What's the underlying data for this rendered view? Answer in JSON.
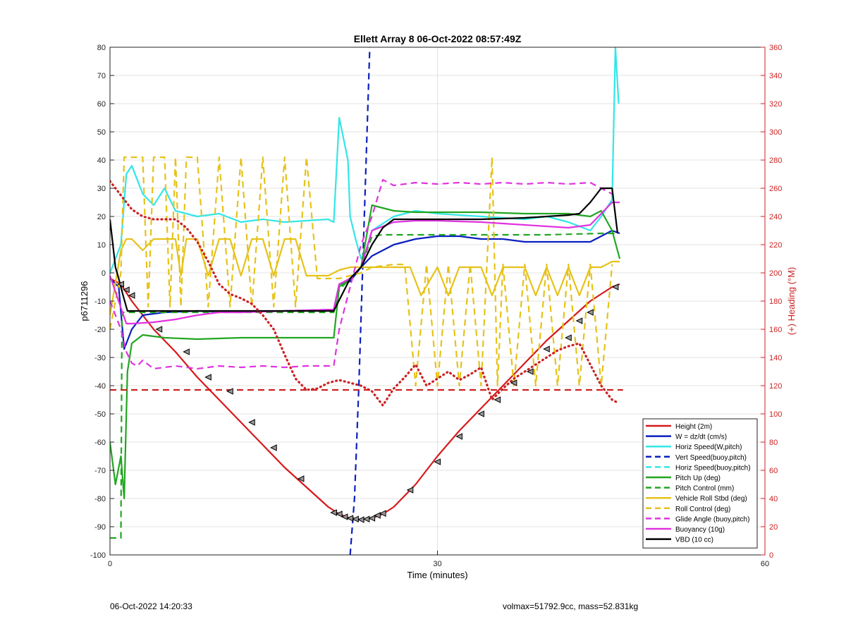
{
  "chart_data": {
    "type": "line",
    "title": "Ellett Array 8 06-Oct-2022 08:57:49Z",
    "xlabel": "Time (minutes)",
    "ylabel": "p6711296",
    "y2label": "(+) Heading (°M)",
    "xlim": [
      0,
      60
    ],
    "ylim": [
      -100,
      80
    ],
    "y2lim": [
      0,
      360
    ],
    "xticks": [
      0,
      30,
      60
    ],
    "yticks": [
      -100,
      -90,
      -80,
      -70,
      -60,
      -50,
      -40,
      -30,
      -20,
      -10,
      0,
      10,
      20,
      30,
      40,
      50,
      60,
      70,
      80
    ],
    "y2ticks": [
      0,
      20,
      40,
      60,
      80,
      100,
      120,
      140,
      160,
      180,
      200,
      220,
      240,
      260,
      280,
      300,
      320,
      340,
      360
    ],
    "grid": true,
    "legend_position": "bottom-right",
    "colors": {
      "red": "#d7191c",
      "blue": "#0a1fbf",
      "cyan": "#33e6e6",
      "green": "#22a622",
      "yellow": "#e6c21a",
      "magenta": "#e033e0",
      "black": "#000000",
      "right_axis": "#cc2222"
    },
    "series": [
      {
        "name": "Height (2m)",
        "color": "red",
        "style": "solid",
        "x": [
          0,
          1,
          2,
          4,
          6,
          8,
          10,
          12,
          14,
          16,
          18,
          20,
          21,
          22,
          23,
          24,
          25,
          26,
          28,
          30,
          32,
          34,
          36,
          38,
          40,
          42,
          44,
          46,
          46.7
        ],
        "y": [
          -2,
          -4,
          -10,
          -20,
          -28,
          -37,
          -45,
          -53,
          -61,
          -69,
          -76,
          -83,
          -85.5,
          -87,
          -87.5,
          -87,
          -85.5,
          -83,
          -75,
          -65,
          -56,
          -48,
          -40,
          -32,
          -24,
          -17,
          -10,
          -5,
          -4
        ]
      },
      {
        "name": "W = dz/dt (cm/s)",
        "color": "blue",
        "style": "solid",
        "x": [
          0,
          0.8,
          1.3,
          2,
          3,
          5,
          8,
          12,
          16,
          20.5,
          21,
          22,
          23,
          24,
          26,
          28,
          30,
          32,
          34,
          36,
          38,
          40,
          42,
          44,
          46,
          46.7
        ],
        "y": [
          -2,
          -5,
          -27,
          -20,
          -15,
          -14,
          -13.5,
          -14,
          -13.5,
          -13,
          -4,
          -3,
          2,
          6,
          10,
          12,
          13,
          13,
          12,
          12,
          11,
          11,
          11,
          11,
          15,
          14
        ]
      },
      {
        "name": "Horiz Speed(W,pitch)",
        "color": "cyan",
        "style": "solid",
        "x": [
          0,
          1,
          1.5,
          2,
          3,
          4,
          5,
          6,
          8,
          10,
          12,
          14,
          16,
          18,
          20,
          20.5,
          21,
          21.8,
          22,
          22.5,
          23,
          23.5,
          24,
          26,
          28,
          30,
          34,
          38,
          40,
          42,
          44,
          45,
          46,
          46.3,
          46.6
        ],
        "y": [
          0,
          10,
          35,
          38,
          28,
          24,
          30,
          22,
          20,
          21,
          18,
          19,
          18,
          18.5,
          19,
          18,
          55,
          40,
          20,
          12,
          5,
          8,
          15,
          20,
          22,
          21,
          20,
          19,
          20,
          18,
          15,
          20,
          26,
          80,
          60
        ]
      },
      {
        "name": "Vert Speed(buoy,pitch)",
        "color": "blue",
        "style": "dashed",
        "x": [
          22,
          22.4,
          22.8,
          23.3,
          23.8
        ],
        "y": [
          -100,
          -80,
          -40,
          20,
          80
        ]
      },
      {
        "name": "Horiz Speed(buoy,pitch)",
        "color": "cyan",
        "style": "dashed",
        "x": [],
        "y": []
      },
      {
        "name": "Pitch Up (deg)",
        "color": "green",
        "style": "solid",
        "x": [
          0,
          0.5,
          1,
          1.3,
          1.6,
          2,
          3,
          5,
          8,
          12,
          16,
          20.5,
          21,
          22,
          23,
          24,
          26,
          28,
          30,
          34,
          38,
          42,
          44,
          45,
          46,
          46.7
        ],
        "y": [
          -60,
          -75,
          -65,
          -80,
          -35,
          -25,
          -22,
          -23,
          -23.5,
          -23,
          -23,
          -23,
          -5,
          -2,
          2,
          24,
          22,
          21.5,
          21.5,
          21.5,
          21,
          21,
          20,
          22,
          15,
          5
        ]
      },
      {
        "name": "Pitch Control (mm)",
        "color": "green",
        "style": "dashed",
        "x": [
          0,
          1,
          1.1,
          3,
          8,
          12,
          16,
          20.5,
          21,
          22,
          23,
          24,
          25,
          30,
          35,
          40,
          45,
          46.5
        ],
        "y": [
          -94,
          -94,
          -14,
          -14,
          -14,
          -14,
          -14,
          -14,
          -6,
          -2,
          2,
          13,
          13.5,
          13.5,
          13.5,
          13.5,
          14,
          14
        ]
      },
      {
        "name": "Vehicle Roll Stbd (deg)",
        "color": "yellow",
        "style": "solid",
        "x": [
          0,
          1,
          1.5,
          2,
          3,
          4,
          5,
          6,
          6.5,
          7,
          8,
          9,
          10,
          11,
          12,
          13,
          14,
          15,
          16,
          17,
          18,
          20,
          21,
          22,
          23,
          24,
          26,
          27.5,
          28.5,
          30,
          31,
          32,
          34,
          35,
          36,
          38,
          39,
          40,
          41,
          42,
          43,
          44,
          45,
          46,
          46.7
        ],
        "y": [
          -15,
          8,
          12,
          12,
          8,
          12,
          12,
          12,
          -1,
          12,
          12,
          -1,
          12,
          12,
          -1,
          12,
          12,
          -1,
          12,
          12,
          -1,
          -1,
          1,
          2,
          2,
          2,
          2,
          2,
          -8,
          2,
          -8,
          2,
          2,
          -8,
          2,
          2,
          -8,
          2,
          -8,
          2,
          -8,
          2,
          2,
          4,
          4
        ]
      },
      {
        "name": "Roll Control (deg)",
        "color": "yellow",
        "style": "dashed",
        "x": [
          0,
          1,
          1.3,
          2,
          3,
          3.5,
          4,
          5,
          5.5,
          6,
          6.5,
          7,
          8,
          9,
          10,
          11,
          12,
          13,
          14,
          15,
          16,
          17,
          18,
          19,
          20,
          21,
          22,
          23,
          24,
          26,
          27,
          28,
          29,
          30,
          31,
          32,
          33,
          34,
          35,
          35.5,
          36,
          37,
          38,
          39,
          40,
          41,
          42,
          43,
          44,
          45,
          46
        ],
        "y": [
          -20,
          0,
          41,
          41,
          41,
          -12,
          41,
          41,
          -12,
          41,
          -12,
          41,
          41,
          -12,
          41,
          -12,
          41,
          -12,
          41,
          -12,
          41,
          -12,
          41,
          -2,
          -2,
          -2,
          -1,
          0,
          2,
          3,
          3,
          -40,
          3,
          -40,
          3,
          -40,
          3,
          -40,
          41,
          -40,
          3,
          -40,
          3,
          -40,
          3,
          -40,
          3,
          -40,
          3,
          -40,
          3
        ]
      },
      {
        "name": "Glide Angle (buoy,pitch)",
        "color": "magenta",
        "style": "dashed",
        "x": [
          0,
          1,
          1.5,
          2,
          2.5,
          3,
          4,
          6,
          8,
          10,
          12,
          14,
          16,
          18,
          20.5,
          21,
          22,
          23,
          24,
          25,
          26,
          28,
          30,
          32,
          34,
          36,
          38,
          40,
          42,
          44,
          45,
          46
        ],
        "y": [
          -10,
          -20,
          -28,
          -32,
          -33,
          -31,
          -34,
          -33,
          -34,
          -33,
          -33.5,
          -33,
          -33.5,
          -33,
          -33,
          -20,
          -5,
          10,
          20,
          33,
          31,
          32,
          31.5,
          32,
          31.5,
          32,
          31.5,
          32,
          31.5,
          32,
          30,
          28
        ]
      },
      {
        "name": "Buoyancy (10g)",
        "color": "magenta",
        "style": "solid",
        "x": [
          0,
          1.5,
          2,
          4,
          6,
          8,
          10,
          12,
          16,
          20.5,
          21,
          22,
          23,
          24,
          26,
          28,
          30,
          34,
          38,
          42,
          44,
          46,
          46.7
        ],
        "y": [
          -1,
          -18,
          -18,
          -17.5,
          -16.5,
          -15,
          -14,
          -14,
          -13.5,
          -13,
          -4,
          -2,
          2,
          15,
          18,
          18.5,
          18.5,
          18,
          17,
          16,
          17,
          25,
          25
        ]
      },
      {
        "name": "VBD (10 cc)",
        "color": "black",
        "style": "solid",
        "x": [
          0,
          0.5,
          0.8,
          1.2,
          1.6,
          3,
          8,
          12,
          16,
          20.5,
          22,
          23,
          24,
          25,
          26,
          30,
          34,
          38,
          42,
          43,
          44,
          45,
          46,
          46.5
        ],
        "y": [
          19,
          2,
          -2,
          -8,
          -13.5,
          -13.5,
          -13.5,
          -13.5,
          -13.5,
          -13.5,
          -2,
          2,
          10,
          16,
          19,
          19,
          19,
          19.5,
          20.5,
          21,
          25,
          30,
          30,
          14
        ]
      }
    ],
    "right_axis_series": [
      {
        "name": "Heading",
        "color": "right_axis",
        "style": "dotted",
        "x": [
          0,
          1,
          2,
          3,
          4,
          5,
          6,
          7,
          8,
          9,
          10,
          11,
          12,
          13,
          14,
          15,
          16,
          17,
          18,
          19,
          20,
          21,
          22,
          23,
          24,
          25,
          26,
          27,
          28,
          29,
          30,
          31,
          32,
          33,
          34,
          35,
          36,
          37,
          38,
          39,
          40,
          41,
          42,
          43,
          44,
          45,
          46,
          46.5
        ],
        "y": [
          265,
          255,
          245,
          240,
          238,
          238,
          238,
          232,
          222,
          208,
          192,
          185,
          182,
          178,
          170,
          160,
          142,
          125,
          117,
          118,
          122,
          124,
          122,
          120,
          116,
          106,
          118,
          126,
          135,
          120,
          125,
          130,
          124,
          128,
          133,
          110,
          118,
          125,
          130,
          135,
          140,
          145,
          148,
          150,
          135,
          120,
          110,
          108
        ]
      },
      {
        "name": "Heading reference",
        "color": "right_axis",
        "style": "dashed",
        "x": [
          0,
          47
        ],
        "y": [
          117,
          117
        ]
      }
    ],
    "markers": {
      "style": "triangle",
      "x": [
        1,
        1.5,
        2,
        4.5,
        7,
        9,
        11,
        13,
        15,
        17.5,
        20.5,
        21,
        21.5,
        22,
        22.5,
        23,
        23.5,
        24,
        24.5,
        25,
        27.5,
        30,
        32,
        34,
        35.5,
        37,
        38.5,
        40,
        42,
        43,
        44,
        46.3
      ],
      "y": [
        -4,
        -6,
        -8,
        -20,
        -28,
        -37,
        -42,
        -53,
        -62,
        -73,
        -85,
        -85.5,
        -86.5,
        -87,
        -87.3,
        -87.5,
        -87.3,
        -87,
        -86,
        -85.3,
        -77,
        -67,
        -58,
        -50,
        -45,
        -39,
        -35,
        -27,
        -23,
        -17,
        -14,
        -5
      ]
    }
  },
  "footer": {
    "left": "06-Oct-2022 14:20:33",
    "right": "volmax=51792.9cc, mass=52.831kg"
  }
}
